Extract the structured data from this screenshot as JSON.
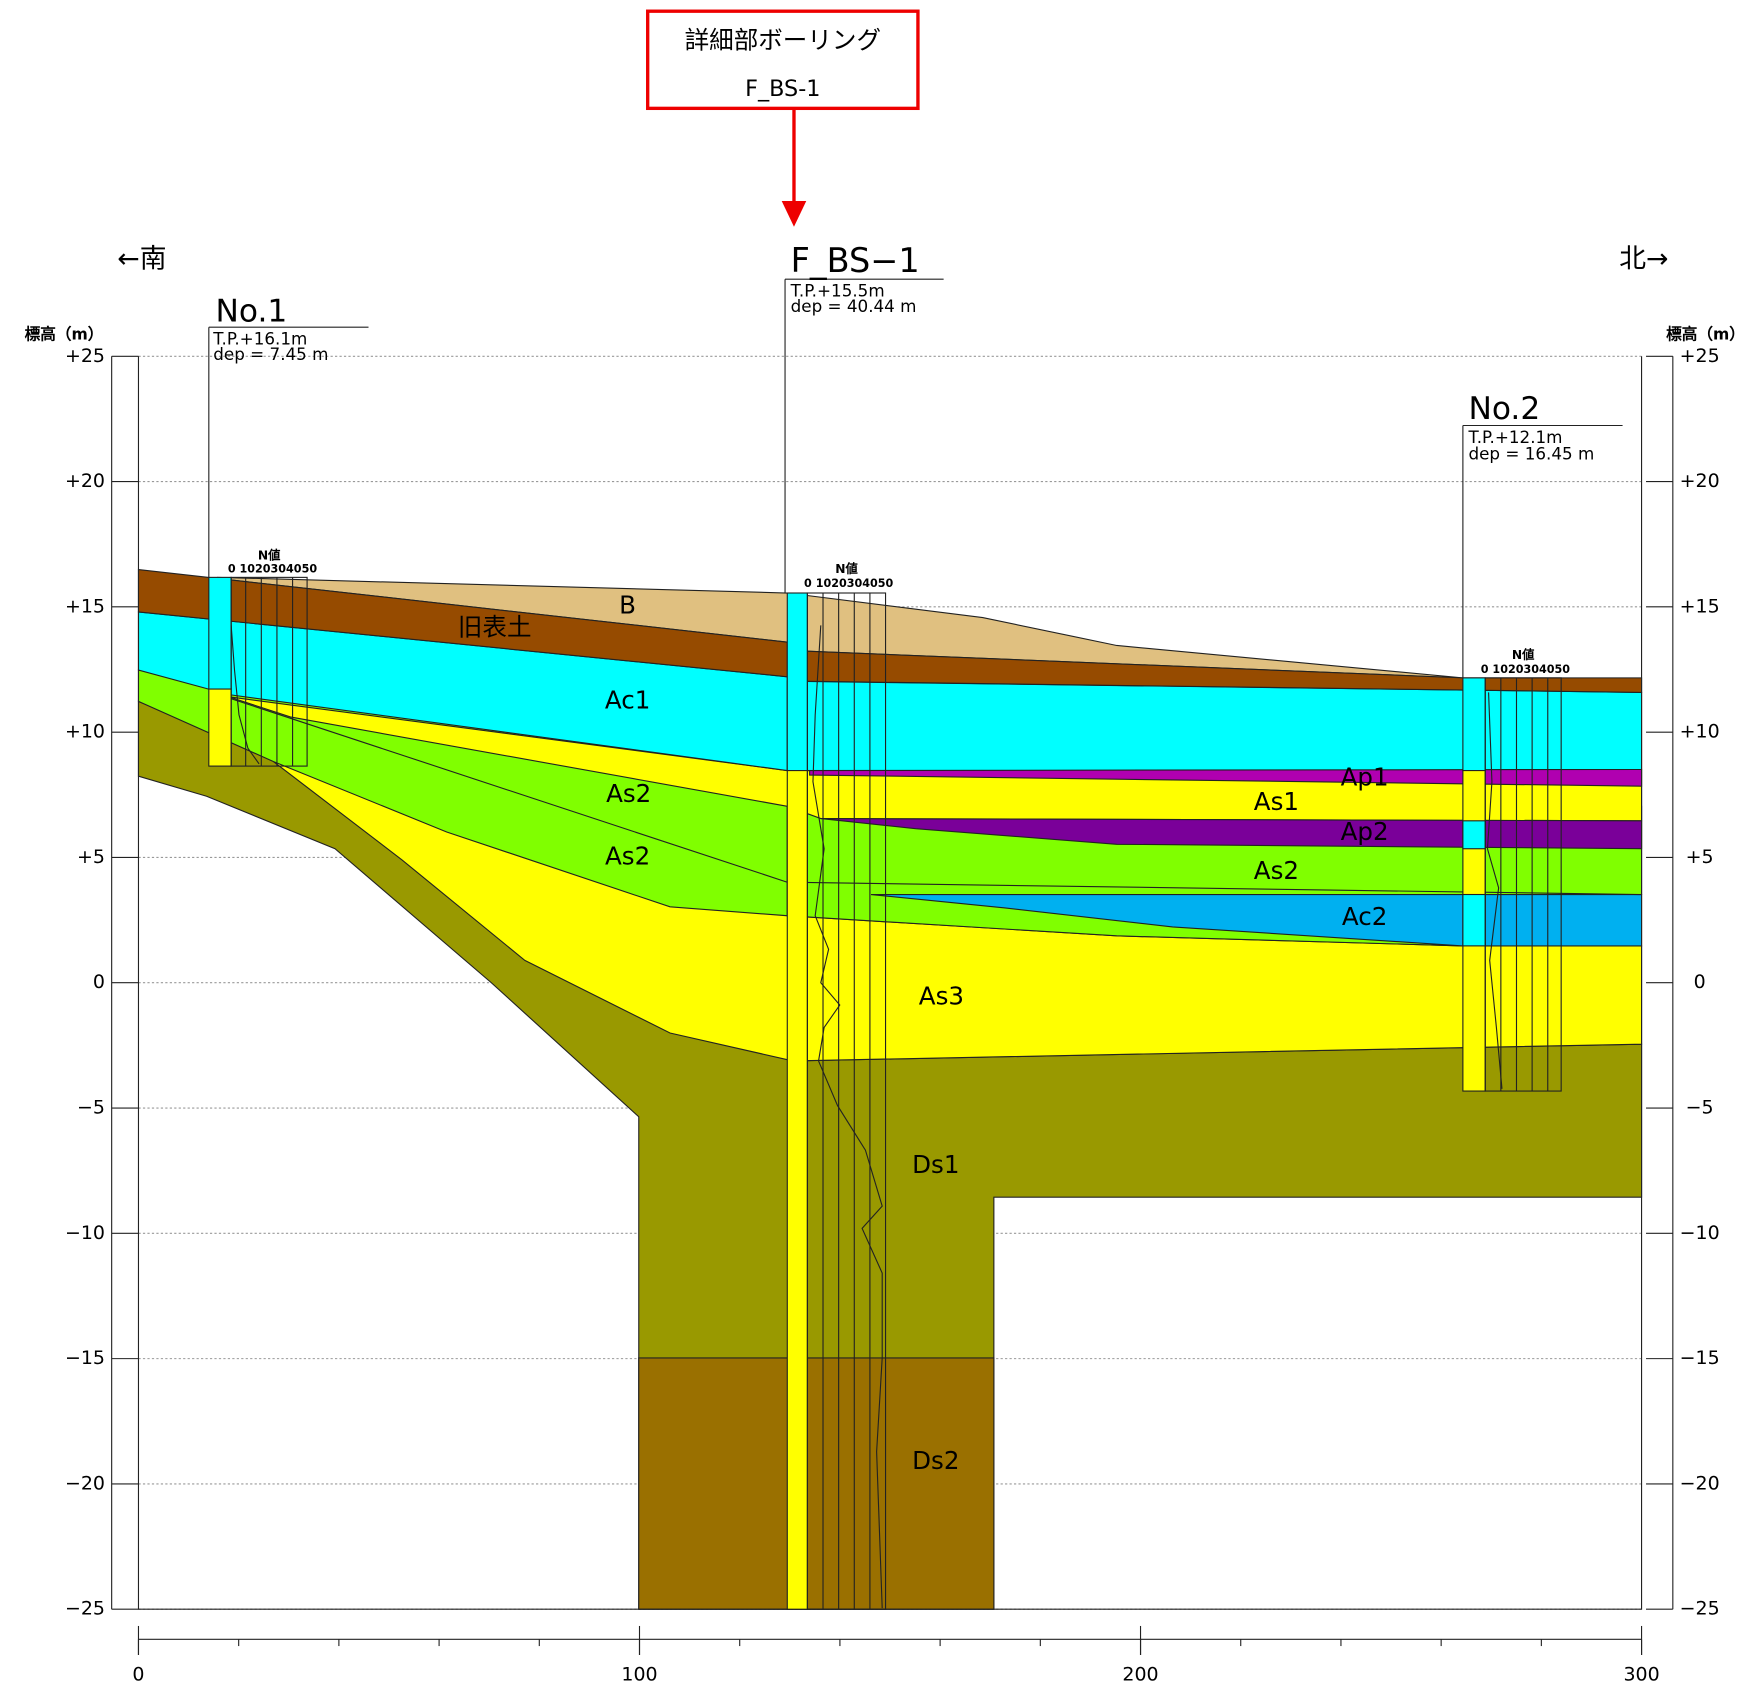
{
  "header": {
    "box_title": "詳細部ボーリング",
    "box_subtitle": "F_BS-1",
    "south": "←南",
    "north": "北→"
  },
  "axis": {
    "y_title": "標高（m）",
    "y_ticks": [
      "+25",
      "+20",
      "+15",
      "+10",
      "+5",
      "0",
      "−5",
      "−10",
      "−15",
      "−20",
      "−25"
    ],
    "x_ticks": [
      "0",
      "100",
      "200",
      "300"
    ]
  },
  "boreholes": [
    {
      "name": "No.1",
      "elevation": "T.P.+16.1m",
      "depth": "dep =  7.45 m",
      "n_label": "N値",
      "n_scale": "0 1020304050"
    },
    {
      "name": "F_BS−1",
      "elevation": "T.P.+15.5m",
      "depth": "dep = 40.44 m",
      "n_label": "N値",
      "n_scale": "0 1020304050"
    },
    {
      "name": "No.2",
      "elevation": "T.P.+12.1m",
      "depth": "dep = 16.45 m",
      "n_label": "N値",
      "n_scale": "0 1020304050"
    }
  ],
  "layers": [
    "B",
    "旧表土",
    "Ac1",
    "As2",
    "As2",
    "Ap1",
    "As1",
    "Ap2",
    "As2",
    "Ac2",
    "As3",
    "Ds1",
    "Ds2"
  ]
}
